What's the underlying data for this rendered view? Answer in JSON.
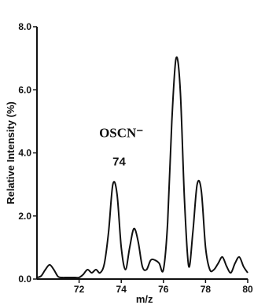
{
  "chart_data": {
    "type": "line",
    "title": "",
    "xlabel": "m/z",
    "ylabel": "Relative Intensity (%)",
    "xlim": [
      70,
      80
    ],
    "ylim": [
      0,
      8
    ],
    "grid": false,
    "x_ticks": [
      72,
      74,
      76,
      78,
      80
    ],
    "x_tick_labels": [
      "72",
      "74",
      "76",
      "78",
      "80"
    ],
    "y_ticks": [
      0,
      2,
      4,
      6,
      8
    ],
    "y_tick_labels": [
      "0.0",
      "2.0",
      "4.0",
      "6.0",
      "8.0"
    ],
    "series": [
      {
        "x": [
          70.0,
          70.2,
          70.4,
          70.6,
          70.8,
          71.0,
          71.2,
          71.4,
          71.6,
          71.8,
          72.0,
          72.2,
          72.4,
          72.6,
          72.8,
          73.0,
          73.2,
          73.4,
          73.6,
          73.8,
          74.0,
          74.2,
          74.4,
          74.6,
          74.8,
          75.0,
          75.2,
          75.4,
          75.6,
          75.8,
          76.0,
          76.2,
          76.4,
          76.6,
          76.8,
          77.0,
          77.2,
          77.4,
          77.6,
          77.8,
          78.0,
          78.2,
          78.4,
          78.6,
          78.8,
          79.0,
          79.2,
          79.4,
          79.6,
          79.8,
          80.0
        ],
        "values": [
          0.05,
          0.1,
          0.3,
          0.45,
          0.3,
          0.08,
          0.05,
          0.05,
          0.05,
          0.05,
          0.05,
          0.15,
          0.3,
          0.2,
          0.3,
          0.2,
          0.5,
          1.5,
          3.0,
          2.7,
          1.0,
          0.3,
          1.0,
          1.6,
          1.2,
          0.4,
          0.3,
          0.6,
          0.6,
          0.5,
          0.3,
          1.8,
          5.0,
          7.0,
          6.0,
          2.5,
          0.4,
          1.5,
          3.0,
          2.8,
          1.0,
          0.3,
          0.3,
          0.5,
          0.7,
          0.4,
          0.2,
          0.5,
          0.7,
          0.4,
          0.2
        ]
      }
    ],
    "annotations": [
      {
        "text": "OSCN⁻",
        "x": 74,
        "y": 4.5
      },
      {
        "text": "74",
        "x": 73.9,
        "y": 3.6
      }
    ]
  }
}
